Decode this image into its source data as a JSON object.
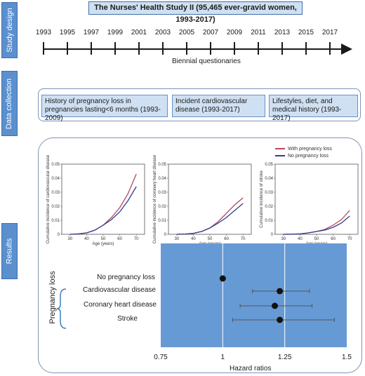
{
  "sections": {
    "study_design": "Study design",
    "data_collection": "Data collection",
    "results": "Results"
  },
  "study_title": "The Nurses' Health Study II (95,465 ever-gravid women, 1993-2017)",
  "timeline": {
    "years": [
      "1993",
      "1995",
      "1997",
      "1999",
      "2001",
      "2003",
      "2005",
      "2007",
      "2009",
      "2011",
      "2013",
      "2015",
      "2017"
    ],
    "caption": "Biennial questionaries"
  },
  "data_collection": {
    "items": [
      "History of pregnancy loss in pregnancies lasting<6 months (1993-2009)",
      "Incident cardiovascular disease (1993-2017)",
      "Lifestyles, diet, and medical history (1993-2017)"
    ]
  },
  "legend": {
    "with_loss": "With pregnancy loss",
    "no_loss": "No pregnancy loss"
  },
  "colors": {
    "with_loss": "#b5485d",
    "no_loss": "#2f3e8f",
    "panel": "#669ad4",
    "tab": "#5b8fce"
  },
  "chart_data": [
    {
      "type": "line",
      "ylabel": "Cumulative incidence of cardiovascular disease",
      "xlabel": "Age (years)",
      "xlim": [
        25,
        75
      ],
      "ylim": [
        0,
        0.05
      ],
      "xticks": [
        "30",
        "40",
        "50",
        "60",
        "70"
      ],
      "yticks": [
        "0",
        "0.01",
        "0.02",
        "0.03",
        "0.04",
        "0.05"
      ],
      "series": [
        {
          "name": "With pregnancy loss",
          "x": [
            30,
            35,
            40,
            45,
            50,
            55,
            60,
            65,
            70
          ],
          "y": [
            0,
            0.0003,
            0.001,
            0.003,
            0.0065,
            0.012,
            0.019,
            0.029,
            0.043
          ]
        },
        {
          "name": "No pregnancy loss",
          "x": [
            30,
            35,
            40,
            45,
            50,
            55,
            60,
            65,
            70
          ],
          "y": [
            0,
            0.0003,
            0.001,
            0.003,
            0.0065,
            0.0105,
            0.016,
            0.024,
            0.034
          ]
        }
      ]
    },
    {
      "type": "line",
      "ylabel": "Cumulative incidence of coronary heart disease",
      "xlabel": "Age (years)",
      "xlim": [
        25,
        75
      ],
      "ylim": [
        0,
        0.05
      ],
      "xticks": [
        "30",
        "40",
        "50",
        "60",
        "70"
      ],
      "yticks": [
        "0",
        "0.01",
        "0.02",
        "0.03",
        "0.04",
        "0.05"
      ],
      "series": [
        {
          "name": "With pregnancy loss",
          "x": [
            30,
            35,
            40,
            45,
            50,
            55,
            60,
            65,
            70
          ],
          "y": [
            0,
            0.0002,
            0.0007,
            0.002,
            0.0045,
            0.009,
            0.015,
            0.021,
            0.026
          ]
        },
        {
          "name": "No pregnancy loss",
          "x": [
            30,
            35,
            40,
            45,
            50,
            55,
            60,
            65,
            70
          ],
          "y": [
            0,
            0.0002,
            0.0007,
            0.002,
            0.0045,
            0.008,
            0.012,
            0.017,
            0.022
          ]
        }
      ]
    },
    {
      "type": "line",
      "ylabel": "Cumulative incidence of stroke",
      "xlabel": "Age (years)",
      "xlim": [
        25,
        75
      ],
      "ylim": [
        0,
        0.05
      ],
      "xticks": [
        "30",
        "40",
        "50",
        "60",
        "70"
      ],
      "yticks": [
        "0",
        "0.01",
        "0.02",
        "0.03",
        "0.04",
        "0.05"
      ],
      "series": [
        {
          "name": "With pregnancy loss",
          "x": [
            30,
            35,
            40,
            45,
            50,
            55,
            60,
            65,
            70
          ],
          "y": [
            0,
            0.0001,
            0.0003,
            0.001,
            0.002,
            0.0035,
            0.0065,
            0.0105,
            0.017
          ]
        },
        {
          "name": "No pregnancy loss",
          "x": [
            30,
            35,
            40,
            45,
            50,
            55,
            60,
            65,
            70
          ],
          "y": [
            0,
            0.0001,
            0.0003,
            0.001,
            0.002,
            0.003,
            0.005,
            0.008,
            0.013
          ]
        }
      ]
    },
    {
      "type": "scatter",
      "xlabel": "Hazard ratios",
      "group_label": "Pregnancy loss",
      "xlim": [
        0.75,
        1.5
      ],
      "xticks": [
        "0.75",
        "1",
        "1.25",
        "1.5"
      ],
      "reference_lines": [
        1,
        1.25
      ],
      "categories": [
        "No pregnancy loss",
        "Cardiovascular disease",
        "Coronary heart disease",
        "Stroke"
      ],
      "values": [
        1.0,
        1.23,
        1.21,
        1.23
      ],
      "lower": [
        1.0,
        1.12,
        1.07,
        1.04
      ],
      "upper": [
        1.0,
        1.35,
        1.36,
        1.45
      ]
    }
  ]
}
